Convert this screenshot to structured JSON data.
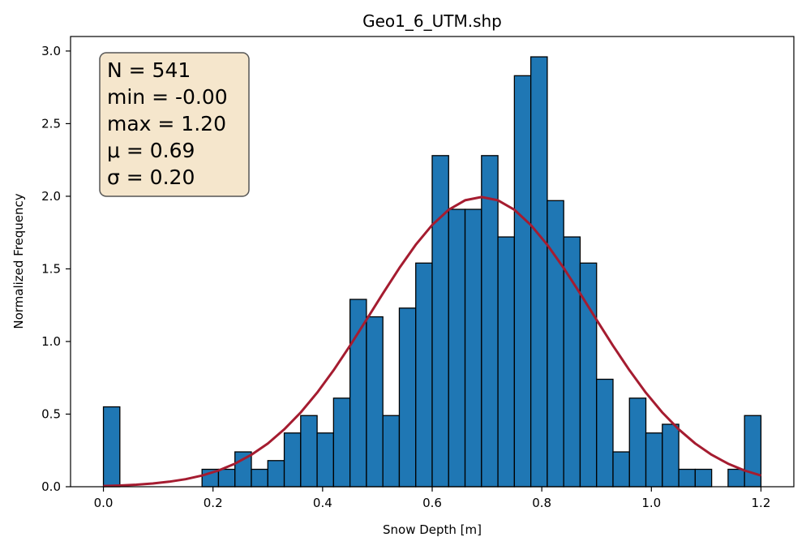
{
  "chart_data": {
    "type": "bar",
    "title": "Geo1_6_UTM.shp",
    "xlabel": "Snow Depth [m]",
    "ylabel": "Normalized Frequency",
    "xlim": [
      -0.06,
      1.26
    ],
    "ylim": [
      0,
      3.1
    ],
    "xticks": [
      "0.0",
      "0.2",
      "0.4",
      "0.6",
      "0.8",
      "1.0",
      "1.2"
    ],
    "yticks": [
      "0.0",
      "0.5",
      "1.0",
      "1.5",
      "2.0",
      "2.5",
      "3.0"
    ],
    "bin_edges": [
      0.0,
      0.03,
      0.06,
      0.09,
      0.12,
      0.15,
      0.18,
      0.21,
      0.24,
      0.27,
      0.3,
      0.33,
      0.36,
      0.39,
      0.42,
      0.45,
      0.48,
      0.51,
      0.54,
      0.57,
      0.6,
      0.63,
      0.66,
      0.69,
      0.72,
      0.75,
      0.78,
      0.81,
      0.84,
      0.87,
      0.9,
      0.93,
      0.96,
      0.99,
      1.02,
      1.05,
      1.08,
      1.11,
      1.14,
      1.17,
      1.2
    ],
    "values": [
      0.55,
      0.0,
      0.0,
      0.0,
      0.0,
      0.0,
      0.12,
      0.12,
      0.24,
      0.12,
      0.18,
      0.37,
      0.49,
      0.37,
      0.61,
      1.29,
      1.17,
      0.49,
      1.23,
      1.54,
      2.28,
      1.91,
      1.91,
      2.28,
      1.72,
      2.83,
      2.96,
      1.97,
      1.72,
      1.54,
      0.74,
      0.24,
      0.61,
      0.37,
      0.43,
      0.12,
      0.12,
      0.0,
      0.12,
      0.49
    ],
    "bar_color": "#1f77b4",
    "bar_edge_color": "#000000",
    "fit_curve": {
      "type": "normal_pdf",
      "mean": 0.69,
      "std": 0.2,
      "x_range": [
        0.0,
        1.2
      ],
      "color": "#a51c30"
    },
    "grid": false,
    "stats_box": {
      "lines": [
        "N = 541",
        "min = -0.00",
        "max = 1.20",
        "μ = 0.69",
        "σ = 0.20"
      ],
      "background": "#f5e6cc",
      "border_color": "#555555"
    }
  }
}
